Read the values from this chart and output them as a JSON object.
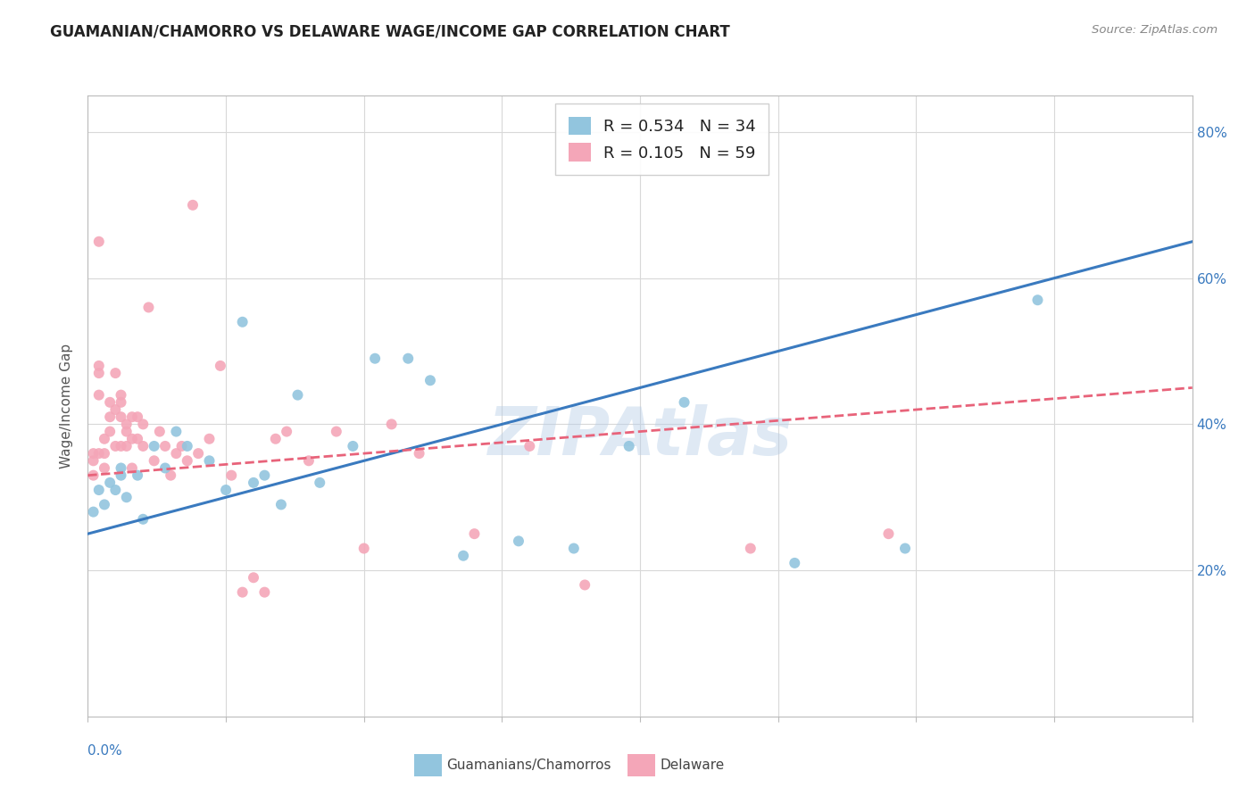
{
  "title": "GUAMANIAN/CHAMORRO VS DELAWARE WAGE/INCOME GAP CORRELATION CHART",
  "source": "Source: ZipAtlas.com",
  "ylabel": "Wage/Income Gap",
  "watermark": "ZIPAtlas",
  "legend1_R": "0.534",
  "legend1_N": "34",
  "legend2_R": "0.105",
  "legend2_N": "59",
  "legend1_label": "Guamanians/Chamorros",
  "legend2_label": "Delaware",
  "blue_color": "#92c5de",
  "pink_color": "#f4a6b8",
  "blue_line_color": "#3a7abf",
  "pink_line_color": "#e8637a",
  "right_yticks": [
    20.0,
    40.0,
    60.0,
    80.0
  ],
  "xmin": 0.0,
  "xmax": 0.2,
  "ymin": 0.0,
  "ymax": 0.85,
  "blue_x": [
    0.001,
    0.002,
    0.003,
    0.004,
    0.005,
    0.006,
    0.006,
    0.007,
    0.009,
    0.01,
    0.012,
    0.014,
    0.016,
    0.018,
    0.022,
    0.025,
    0.028,
    0.03,
    0.032,
    0.035,
    0.038,
    0.042,
    0.048,
    0.052,
    0.058,
    0.062,
    0.068,
    0.078,
    0.088,
    0.098,
    0.108,
    0.128,
    0.148,
    0.172
  ],
  "blue_y": [
    0.28,
    0.31,
    0.29,
    0.32,
    0.31,
    0.34,
    0.33,
    0.3,
    0.33,
    0.27,
    0.37,
    0.34,
    0.39,
    0.37,
    0.35,
    0.31,
    0.54,
    0.32,
    0.33,
    0.29,
    0.44,
    0.32,
    0.37,
    0.49,
    0.49,
    0.46,
    0.22,
    0.24,
    0.23,
    0.37,
    0.43,
    0.21,
    0.23,
    0.57
  ],
  "pink_x": [
    0.001,
    0.001,
    0.001,
    0.002,
    0.002,
    0.002,
    0.002,
    0.002,
    0.003,
    0.003,
    0.003,
    0.004,
    0.004,
    0.004,
    0.005,
    0.005,
    0.005,
    0.006,
    0.006,
    0.006,
    0.006,
    0.007,
    0.007,
    0.007,
    0.008,
    0.008,
    0.008,
    0.009,
    0.009,
    0.01,
    0.01,
    0.011,
    0.012,
    0.013,
    0.014,
    0.015,
    0.016,
    0.017,
    0.018,
    0.019,
    0.02,
    0.022,
    0.024,
    0.026,
    0.028,
    0.03,
    0.032,
    0.034,
    0.036,
    0.04,
    0.045,
    0.05,
    0.055,
    0.06,
    0.07,
    0.08,
    0.09,
    0.12,
    0.145
  ],
  "pink_y": [
    0.33,
    0.36,
    0.35,
    0.65,
    0.48,
    0.44,
    0.47,
    0.36,
    0.34,
    0.38,
    0.36,
    0.39,
    0.43,
    0.41,
    0.37,
    0.47,
    0.42,
    0.44,
    0.41,
    0.43,
    0.37,
    0.4,
    0.39,
    0.37,
    0.34,
    0.41,
    0.38,
    0.41,
    0.38,
    0.37,
    0.4,
    0.56,
    0.35,
    0.39,
    0.37,
    0.33,
    0.36,
    0.37,
    0.35,
    0.7,
    0.36,
    0.38,
    0.48,
    0.33,
    0.17,
    0.19,
    0.17,
    0.38,
    0.39,
    0.35,
    0.39,
    0.23,
    0.4,
    0.36,
    0.25,
    0.37,
    0.18,
    0.23,
    0.25
  ],
  "blue_line_x": [
    0.0,
    0.2
  ],
  "blue_line_y": [
    0.25,
    0.65
  ],
  "pink_line_x": [
    0.0,
    0.2
  ],
  "pink_line_y": [
    0.33,
    0.45
  ]
}
